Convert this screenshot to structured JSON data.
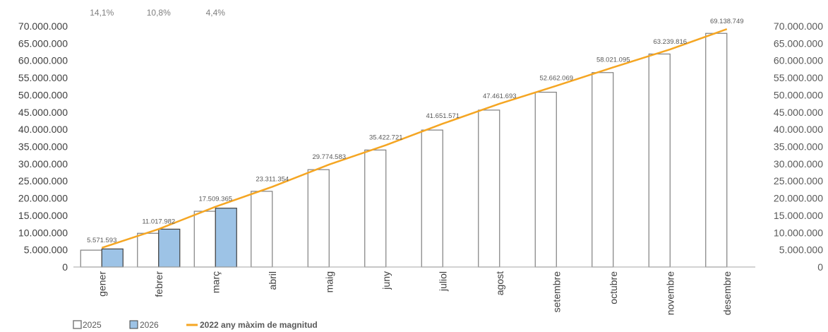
{
  "chart_data": {
    "type": "bar",
    "categories": [
      "gener",
      "febrer",
      "març",
      "abril",
      "maig",
      "juny",
      "juliol",
      "agost",
      "setembre",
      "octubre",
      "novembre",
      "desembre"
    ],
    "series": [
      {
        "name": "2025",
        "type": "bar",
        "color": "#ffffff",
        "stroke": "#7f7f7f",
        "values": [
          4900000,
          9800000,
          16200000,
          22000000,
          28300000,
          34000000,
          39800000,
          45600000,
          50800000,
          56500000,
          61900000,
          67900000
        ]
      },
      {
        "name": "2026",
        "type": "bar",
        "color": "#9dc3e6",
        "stroke": "#404040",
        "values": [
          5250000,
          11000000,
          17100000,
          null,
          null,
          null,
          null,
          null,
          null,
          null,
          null,
          null
        ]
      },
      {
        "name": "2022 any màxim de magnitud",
        "type": "line",
        "color": "#f5a623",
        "values": [
          5571593,
          11017982,
          17509365,
          23311354,
          29774583,
          35422721,
          41651571,
          47461693,
          52662069,
          58021095,
          63239816,
          69138749
        ],
        "labels": [
          "5.571.593",
          "11.017.982",
          "17.509.365",
          "23.311.354",
          "29.774.583",
          "35.422.721",
          "41.651.571",
          "47.461.693",
          "52.662.069",
          "58.021.095",
          "63.239.816",
          "69.138.749"
        ]
      }
    ],
    "percent_labels": [
      "14,1%",
      "10,8%",
      "4,4%"
    ],
    "ylim": [
      0,
      70000000
    ],
    "y_ticks": [
      "0",
      "5.000.000",
      "10.000.000",
      "15.000.000",
      "20.000.000",
      "25.000.000",
      "30.000.000",
      "35.000.000",
      "40.000.000",
      "45.000.000",
      "50.000.000",
      "55.000.000",
      "60.000.000",
      "65.000.000",
      "70.000.000"
    ],
    "legend": {
      "position": "bottom-left",
      "items": [
        "2025",
        "2026",
        "2022 any màxim de magnitud"
      ]
    },
    "grid": false
  }
}
